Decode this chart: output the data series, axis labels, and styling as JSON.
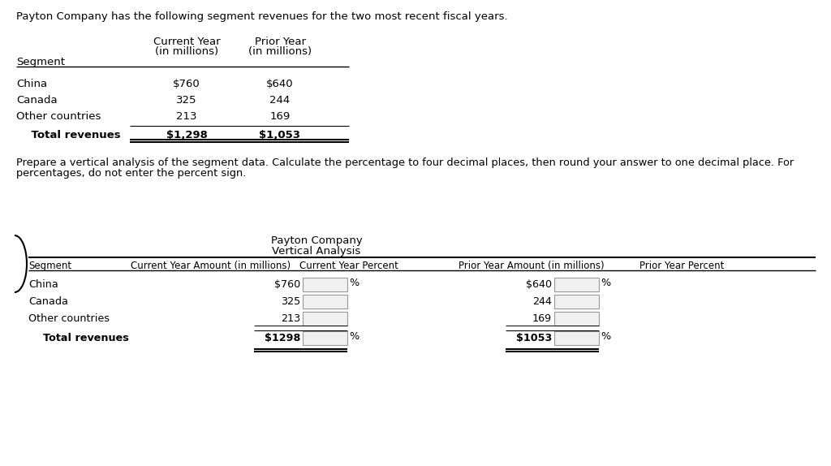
{
  "title_text": "Payton Company has the following segment revenues for the two most recent fiscal years.",
  "prepare_line1": "Prepare a vertical analysis of the segment data. Calculate the percentage to four decimal places, then round your answer to one decimal place. For",
  "prepare_line2": "percentages, do not enter the percent sign.",
  "t2_title1": "Payton Company",
  "t2_title2": "Vertical Analysis",
  "bg_color": "#ffffff",
  "text_color": "#000000"
}
